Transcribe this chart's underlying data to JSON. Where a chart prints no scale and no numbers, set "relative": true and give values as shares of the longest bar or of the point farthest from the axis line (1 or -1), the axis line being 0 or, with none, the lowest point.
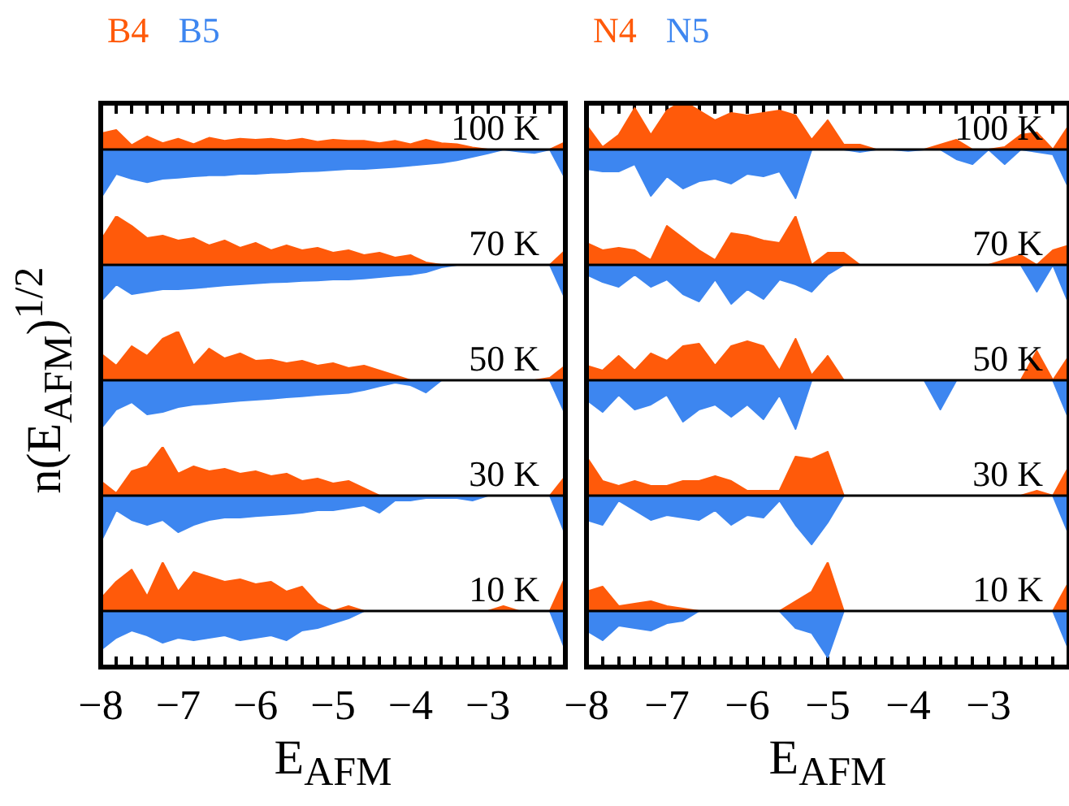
{
  "chart_data": [
    {
      "type": "area",
      "relative": true,
      "annotations": [
        "100 K"
      ],
      "tick_labels": false,
      "xlim": [
        -8,
        -2
      ],
      "xticks": [
        -8,
        {
          "value": -7.8,
          "label": null
        },
        {
          "value": -7.6,
          "label": null
        },
        {
          "value": -7.4,
          "label": null
        },
        {
          "value": -7.2,
          "label": null
        },
        -7,
        {
          "value": -6.8,
          "label": null
        },
        {
          "value": -6.6,
          "label": null
        },
        {
          "value": -6.4,
          "label": null
        },
        {
          "value": -6.2,
          "label": null
        },
        -6,
        {
          "value": -5.8,
          "label": null
        },
        {
          "value": -5.6,
          "label": null
        },
        {
          "value": -5.4,
          "label": null
        },
        {
          "value": -5.2,
          "label": null
        },
        -5,
        {
          "value": -4.8,
          "label": null
        },
        {
          "value": -4.6,
          "label": null
        },
        {
          "value": -4.4,
          "label": null
        },
        {
          "value": -4.2,
          "label": null
        },
        -4,
        {
          "value": -3.8,
          "label": null
        },
        {
          "value": -3.6,
          "label": null
        },
        {
          "value": -3.4,
          "label": null
        },
        {
          "value": -3.2,
          "label": null
        },
        -3,
        {
          "value": -2.8,
          "label": null
        },
        {
          "value": -2.6,
          "label": null
        },
        {
          "value": -2.4,
          "label": null
        },
        {
          "value": -2.2,
          "label": null
        },
        {
          "value": -2,
          "label": null
        }
      ],
      "x": [
        -8,
        -7.8,
        -7.6,
        -7.4,
        -7.2,
        -7,
        -6.8,
        -6.6,
        -6.4,
        -6.2,
        -6,
        -5.8,
        -5.6,
        -5.4,
        -5.2,
        -5,
        -4.8,
        -4.6,
        -4.4,
        -4.2,
        -4,
        -3.8,
        -3.6,
        -3.4,
        -3.2,
        -3,
        -2.8,
        -2.6,
        -2.4,
        -2.2,
        -2
      ],
      "series": [
        {
          "name": "B4",
          "color": "#ff5a0a",
          "values": [
            0.33,
            0.4,
            0.09,
            0.27,
            0.13,
            0.22,
            0.11,
            0.24,
            0.18,
            0.22,
            0.2,
            0.22,
            0.18,
            0.22,
            0.16,
            0.2,
            0.18,
            0.18,
            0.13,
            0.18,
            0.11,
            0.2,
            0.13,
            0.11,
            0.04,
            0,
            0,
            0,
            0,
            0,
            0.15
          ]
        },
        {
          "name": "B5",
          "color": "#3d86f0",
          "values": [
            -1,
            -0.5,
            -0.6,
            -0.67,
            -0.6,
            -0.58,
            -0.55,
            -0.53,
            -0.53,
            -0.5,
            -0.5,
            -0.48,
            -0.47,
            -0.45,
            -0.44,
            -0.42,
            -0.4,
            -0.4,
            -0.38,
            -0.36,
            -0.33,
            -0.3,
            -0.27,
            -0.22,
            -0.15,
            -0.08,
            0,
            -0.04,
            -0.07,
            0,
            -0.6
          ]
        }
      ]
    },
    {
      "type": "area",
      "relative": true,
      "annotations": [
        "70 K"
      ],
      "tick_labels": false,
      "xlim": [
        -8,
        -2
      ],
      "x": [
        -8,
        -7.8,
        -7.6,
        -7.4,
        -7.2,
        -7,
        -6.8,
        -6.6,
        -6.4,
        -6.2,
        -6,
        -5.8,
        -5.6,
        -5.4,
        -5.2,
        -5,
        -4.8,
        -4.6,
        -4.4,
        -4.2,
        -4,
        -3.8,
        -3.6,
        -3.4,
        -3.2,
        -3,
        -2.8,
        -2.6,
        -2.4,
        -2.2,
        -2
      ],
      "series": [
        {
          "color": "#ff5a0a",
          "values": [
            0.5,
            1,
            0.8,
            0.55,
            0.6,
            0.5,
            0.55,
            0.4,
            0.5,
            0.35,
            0.45,
            0.3,
            0.4,
            0.3,
            0.35,
            0.25,
            0.3,
            0.2,
            0.25,
            0.15,
            0.2,
            0.05,
            0,
            0,
            0,
            0,
            0,
            0,
            0,
            0,
            0.3
          ]
        },
        {
          "color": "#3d86f0",
          "values": [
            -0.75,
            -0.4,
            -0.6,
            -0.55,
            -0.5,
            -0.5,
            -0.48,
            -0.45,
            -0.42,
            -0.4,
            -0.38,
            -0.36,
            -0.35,
            -0.33,
            -0.32,
            -0.3,
            -0.3,
            -0.28,
            -0.25,
            -0.22,
            -0.2,
            -0.15,
            -0.05,
            0,
            0,
            0,
            0,
            0,
            0,
            0,
            -0.7
          ]
        }
      ]
    },
    {
      "type": "area",
      "relative": true,
      "annotations": [
        "50 K"
      ],
      "ylabel": "n(E$_{AFM}$)$^{1/2}$",
      "tick_labels": false,
      "xlim": [
        -8,
        -2
      ],
      "x": [
        -8,
        -7.8,
        -7.6,
        -7.4,
        -7.2,
        -7,
        -6.8,
        -6.6,
        -6.4,
        -6.2,
        -6,
        -5.8,
        -5.6,
        -5.4,
        -5.2,
        -5,
        -4.8,
        -4.6,
        -4.4,
        -4.2,
        -4,
        -3.8,
        -3.6,
        -3.4,
        -3.2,
        -3,
        -2.8,
        -2.6,
        -2.4,
        -2.2,
        -2
      ],
      "series": [
        {
          "color": "#ff5a0a",
          "values": [
            0.55,
            0.3,
            0.7,
            0.5,
            0.85,
            1,
            0.3,
            0.65,
            0.45,
            0.55,
            0.4,
            0.42,
            0.35,
            0.4,
            0.3,
            0.35,
            0.25,
            0.3,
            0.2,
            0.1,
            0,
            0,
            0,
            0,
            0,
            0,
            0,
            0,
            0,
            0.05,
            0.3
          ]
        },
        {
          "color": "#3d86f0",
          "values": [
            -1,
            -0.6,
            -0.45,
            -0.7,
            -0.65,
            -0.55,
            -0.5,
            -0.48,
            -0.45,
            -0.42,
            -0.4,
            -0.38,
            -0.35,
            -0.33,
            -0.3,
            -0.28,
            -0.26,
            -0.2,
            -0.12,
            -0.05,
            -0.1,
            -0.25,
            0,
            0,
            0,
            0,
            0,
            0,
            0,
            0,
            -0.7
          ]
        }
      ]
    },
    {
      "type": "area",
      "relative": true,
      "annotations": [
        "30 K"
      ],
      "tick_labels": false,
      "xlim": [
        -8,
        -2
      ],
      "x": [
        -8,
        -7.8,
        -7.6,
        -7.4,
        -7.2,
        -7,
        -6.8,
        -6.6,
        -6.4,
        -6.2,
        -6,
        -5.8,
        -5.6,
        -5.4,
        -5.2,
        -5,
        -4.8,
        -4.6,
        -4.4,
        -4.2,
        -4,
        -3.8,
        -3.6,
        -3.4,
        -3.2,
        -3,
        -2.8,
        -2.6,
        -2.4,
        -2.2,
        -2
      ],
      "series": [
        {
          "color": "#ff5a0a",
          "values": [
            0.3,
            0.05,
            0.5,
            0.6,
            1,
            0.45,
            0.6,
            0.5,
            0.55,
            0.45,
            0.5,
            0.4,
            0.45,
            0.3,
            0.35,
            0.25,
            0.3,
            0.15,
            0,
            0,
            0,
            0,
            0,
            0,
            0,
            0,
            0,
            0,
            0,
            0,
            0.4
          ]
        },
        {
          "color": "#3d86f0",
          "values": [
            -0.95,
            -0.3,
            -0.5,
            -0.6,
            -0.5,
            -0.75,
            -0.6,
            -0.5,
            -0.45,
            -0.45,
            -0.42,
            -0.4,
            -0.38,
            -0.35,
            -0.3,
            -0.3,
            -0.25,
            -0.2,
            -0.35,
            -0.1,
            -0.1,
            -0.05,
            -0.05,
            -0.05,
            -0.1,
            0,
            0,
            0,
            0,
            0,
            -0.8
          ]
        }
      ]
    },
    {
      "type": "area",
      "relative": true,
      "annotations": [
        "10 K"
      ],
      "xlabel": "E$_{AFM}$",
      "tick_labels": "x",
      "xlim": [
        -8,
        -2
      ],
      "xticks": [
        -8,
        {
          "value": -7.8,
          "label": null
        },
        {
          "value": -7.6,
          "label": null
        },
        {
          "value": -7.4,
          "label": null
        },
        {
          "value": -7.2,
          "label": null
        },
        -7,
        {
          "value": -6.8,
          "label": null
        },
        {
          "value": -6.6,
          "label": null
        },
        {
          "value": -6.4,
          "label": null
        },
        {
          "value": -6.2,
          "label": null
        },
        -6,
        {
          "value": -5.8,
          "label": null
        },
        {
          "value": -5.6,
          "label": null
        },
        {
          "value": -5.4,
          "label": null
        },
        {
          "value": -5.2,
          "label": null
        },
        -5,
        {
          "value": -4.8,
          "label": null
        },
        {
          "value": -4.6,
          "label": null
        },
        {
          "value": -4.4,
          "label": null
        },
        {
          "value": -4.2,
          "label": null
        },
        -4,
        {
          "value": -3.8,
          "label": null
        },
        {
          "value": -3.6,
          "label": null
        },
        {
          "value": -3.4,
          "label": null
        },
        {
          "value": -3.2,
          "label": null
        },
        -3,
        {
          "value": -2.8,
          "label": null
        },
        {
          "value": -2.6,
          "label": null
        },
        {
          "value": -2.4,
          "label": null
        },
        {
          "value": -2.2,
          "label": null
        },
        {
          "value": -2,
          "label": null
        }
      ],
      "x": [
        -8,
        -7.8,
        -7.6,
        -7.4,
        -7.2,
        -7,
        -6.8,
        -6.6,
        -6.4,
        -6.2,
        -6,
        -5.8,
        -5.6,
        -5.4,
        -5.2,
        -5,
        -4.8,
        -4.6,
        -4.4,
        -4.2,
        -4,
        -3.8,
        -3.6,
        -3.4,
        -3.2,
        -3,
        -2.8,
        -2.6,
        -2.4,
        -2.2,
        -2
      ],
      "series": [
        {
          "color": "#ff5a0a",
          "values": [
            0.25,
            0.6,
            0.85,
            0.3,
            1,
            0.4,
            0.8,
            0.7,
            0.6,
            0.65,
            0.55,
            0.6,
            0.4,
            0.5,
            0.15,
            0,
            0.1,
            0,
            0,
            0,
            0,
            0,
            0,
            0,
            0,
            0,
            0.1,
            0,
            0,
            0,
            0.7
          ]
        },
        {
          "color": "#3d86f0",
          "values": [
            -0.8,
            -0.55,
            -0.4,
            -0.5,
            -0.65,
            -0.55,
            -0.6,
            -0.55,
            -0.5,
            -0.6,
            -0.55,
            -0.5,
            -0.6,
            -0.4,
            -0.35,
            -0.25,
            -0.15,
            0,
            0,
            0,
            0,
            0,
            0,
            0,
            0,
            0,
            0,
            0,
            0,
            0,
            -0.8
          ]
        }
      ]
    },
    {
      "type": "area",
      "relative": true,
      "annotations": [
        "100 K"
      ],
      "tick_labels": false,
      "xlim": [
        -8,
        -2
      ],
      "xticks": [
        -8,
        {
          "value": -7.8,
          "label": null
        },
        {
          "value": -7.6,
          "label": null
        },
        {
          "value": -7.4,
          "label": null
        },
        {
          "value": -7.2,
          "label": null
        },
        -7,
        {
          "value": -6.8,
          "label": null
        },
        {
          "value": -6.6,
          "label": null
        },
        {
          "value": -6.4,
          "label": null
        },
        {
          "value": -6.2,
          "label": null
        },
        -6,
        {
          "value": -5.8,
          "label": null
        },
        {
          "value": -5.6,
          "label": null
        },
        {
          "value": -5.4,
          "label": null
        },
        {
          "value": -5.2,
          "label": null
        },
        -5,
        {
          "value": -4.8,
          "label": null
        },
        {
          "value": -4.6,
          "label": null
        },
        {
          "value": -4.4,
          "label": null
        },
        {
          "value": -4.2,
          "label": null
        },
        -4,
        {
          "value": -3.8,
          "label": null
        },
        {
          "value": -3.6,
          "label": null
        },
        {
          "value": -3.4,
          "label": null
        },
        {
          "value": -3.2,
          "label": null
        },
        -3,
        {
          "value": -2.8,
          "label": null
        },
        {
          "value": -2.6,
          "label": null
        },
        {
          "value": -2.4,
          "label": null
        },
        {
          "value": -2.2,
          "label": null
        },
        {
          "value": -2,
          "label": null
        }
      ],
      "x": [
        -8,
        -7.8,
        -7.6,
        -7.4,
        -7.2,
        -7,
        -6.8,
        -6.6,
        -6.4,
        -6.2,
        -6,
        -5.8,
        -5.6,
        -5.4,
        -5.2,
        -5,
        -4.8,
        -4.6,
        -4.4,
        -4.2,
        -4,
        -3.8,
        -3.6,
        -3.4,
        -3.2,
        -3,
        -2.8,
        -2.6,
        -2.4,
        -2.2,
        -2
      ],
      "series": [
        {
          "name": "N4",
          "color": "#ff5a0a",
          "values": [
            0.5,
            0.05,
            0.3,
            0.85,
            0.3,
            0.8,
            1,
            0.8,
            0.6,
            0.75,
            0.7,
            0.75,
            0.8,
            0.7,
            0.2,
            0.6,
            0.1,
            0.1,
            0,
            0,
            0,
            0,
            0.1,
            0.2,
            0,
            0,
            0.05,
            0.3,
            0.35,
            0,
            0.5
          ]
        },
        {
          "name": "N5",
          "color": "#3d86f0",
          "values": [
            -0.4,
            -0.45,
            -0.45,
            -0.3,
            -0.95,
            -0.55,
            -0.8,
            -0.65,
            -0.6,
            -0.7,
            -0.5,
            -0.55,
            -0.45,
            -1,
            0,
            0,
            0,
            -0.05,
            0,
            0,
            -0.03,
            0,
            0,
            -0.2,
            -0.3,
            0,
            -0.3,
            0,
            -0.05,
            -0.1,
            -0.8
          ]
        }
      ]
    },
    {
      "type": "area",
      "relative": true,
      "annotations": [
        "70 K"
      ],
      "tick_labels": false,
      "xlim": [
        -8,
        -2
      ],
      "x": [
        -8,
        -7.8,
        -7.6,
        -7.4,
        -7.2,
        -7,
        -6.8,
        -6.6,
        -6.4,
        -6.2,
        -6,
        -5.8,
        -5.6,
        -5.4,
        -5.2,
        -5,
        -4.8,
        -4.6,
        -4.4,
        -4.2,
        -4,
        -3.8,
        -3.6,
        -3.4,
        -3.2,
        -3,
        -2.8,
        -2.6,
        -2.4,
        -2.2,
        -2
      ],
      "series": [
        {
          "color": "#ff5a0a",
          "values": [
            0.45,
            0.3,
            0.35,
            0.3,
            0.1,
            0.8,
            0.55,
            0.3,
            0.1,
            0.65,
            0.6,
            0.5,
            0.45,
            1,
            0,
            0.25,
            0.25,
            0,
            0,
            0,
            0,
            0,
            0,
            0,
            0,
            0,
            0.1,
            0.2,
            0,
            0.3,
            0.4
          ]
        },
        {
          "color": "#3d86f0",
          "values": [
            -0.2,
            -0.35,
            -0.45,
            -0.2,
            -0.45,
            -0.3,
            -0.6,
            -0.75,
            -0.3,
            -0.8,
            -0.5,
            -0.7,
            -0.3,
            -0.4,
            -0.55,
            -0.2,
            0,
            0,
            0,
            0,
            0,
            0,
            0,
            0,
            0,
            0,
            0,
            0,
            -0.55,
            0,
            -0.8
          ]
        }
      ]
    },
    {
      "type": "area",
      "relative": true,
      "annotations": [
        "50 K"
      ],
      "tick_labels": false,
      "xlim": [
        -8,
        -2
      ],
      "x": [
        -8,
        -7.8,
        -7.6,
        -7.4,
        -7.2,
        -7,
        -6.8,
        -6.6,
        -6.4,
        -6.2,
        -6,
        -5.8,
        -5.6,
        -5.4,
        -5.2,
        -5,
        -4.8,
        -4.6,
        -4.4,
        -4.2,
        -4,
        -3.8,
        -3.6,
        -3.4,
        -3.2,
        -3,
        -2.8,
        -2.6,
        -2.4,
        -2.2,
        -2
      ],
      "series": [
        {
          "color": "#ff5a0a",
          "values": [
            0.3,
            0.2,
            0.5,
            0.2,
            0.55,
            0.4,
            0.7,
            0.75,
            0.3,
            0.7,
            0.8,
            0.7,
            0.2,
            0.85,
            0.1,
            0.5,
            0,
            0,
            0,
            0,
            0,
            0,
            0,
            0,
            0,
            0,
            0,
            0,
            0.6,
            0,
            0.5
          ]
        },
        {
          "color": "#3d86f0",
          "values": [
            -0.4,
            -0.65,
            -0.3,
            -0.6,
            -0.5,
            -0.3,
            -0.85,
            -0.6,
            -0.5,
            -0.75,
            -0.5,
            -0.8,
            -0.3,
            -1,
            0,
            0,
            0,
            0,
            0,
            0,
            0,
            0,
            -0.6,
            0,
            0,
            0,
            0,
            0,
            0,
            0,
            -0.8
          ]
        }
      ]
    },
    {
      "type": "area",
      "relative": true,
      "annotations": [
        "30 K"
      ],
      "tick_labels": false,
      "xlim": [
        -8,
        -2
      ],
      "x": [
        -8,
        -7.8,
        -7.6,
        -7.4,
        -7.2,
        -7,
        -6.8,
        -6.6,
        -6.4,
        -6.2,
        -6,
        -5.8,
        -5.6,
        -5.4,
        -5.2,
        -5,
        -4.8,
        -4.6,
        -4.4,
        -4.2,
        -4,
        -3.8,
        -3.6,
        -3.4,
        -3.2,
        -3,
        -2.8,
        -2.6,
        -2.4,
        -2.2,
        -2
      ],
      "series": [
        {
          "color": "#ff5a0a",
          "values": [
            0.8,
            0.3,
            0.2,
            0.3,
            0.2,
            0.2,
            0.3,
            0.3,
            0.4,
            0.3,
            0.1,
            0.1,
            0.1,
            0.8,
            0.75,
            0.9,
            0,
            0,
            0,
            0,
            0,
            0,
            0,
            0,
            0,
            0,
            0,
            0,
            0.1,
            0,
            0.6
          ]
        },
        {
          "color": "#3d86f0",
          "values": [
            -0.5,
            -0.6,
            -0.1,
            -0.3,
            -0.5,
            -0.4,
            -0.45,
            -0.5,
            -0.3,
            -0.6,
            -0.4,
            -0.45,
            -0.1,
            -0.6,
            -1,
            -0.55,
            0,
            0,
            0,
            0,
            0,
            0,
            0,
            0,
            0,
            0,
            0,
            0,
            0,
            0,
            -0.8
          ]
        }
      ]
    },
    {
      "type": "area",
      "relative": true,
      "annotations": [
        "10 K"
      ],
      "xlabel": "E$_{AFM}$",
      "tick_labels": "x",
      "xlim": [
        -8,
        -2
      ],
      "xticks": [
        -8,
        {
          "value": -7.8,
          "label": null
        },
        {
          "value": -7.6,
          "label": null
        },
        {
          "value": -7.4,
          "label": null
        },
        {
          "value": -7.2,
          "label": null
        },
        -7,
        {
          "value": -6.8,
          "label": null
        },
        {
          "value": -6.6,
          "label": null
        },
        {
          "value": -6.4,
          "label": null
        },
        {
          "value": -6.2,
          "label": null
        },
        -6,
        {
          "value": -5.8,
          "label": null
        },
        {
          "value": -5.6,
          "label": null
        },
        {
          "value": -5.4,
          "label": null
        },
        {
          "value": -5.2,
          "label": null
        },
        -5,
        {
          "value": -4.8,
          "label": null
        },
        {
          "value": -4.6,
          "label": null
        },
        {
          "value": -4.4,
          "label": null
        },
        {
          "value": -4.2,
          "label": null
        },
        -4,
        {
          "value": -3.8,
          "label": null
        },
        {
          "value": -3.6,
          "label": null
        },
        {
          "value": -3.4,
          "label": null
        },
        {
          "value": -3.2,
          "label": null
        },
        -3,
        {
          "value": -2.8,
          "label": null
        },
        {
          "value": -2.6,
          "label": null
        },
        {
          "value": -2.4,
          "label": null
        },
        {
          "value": -2.2,
          "label": null
        },
        {
          "value": -2,
          "label": null
        }
      ],
      "x": [
        -8,
        -7.8,
        -7.6,
        -7.4,
        -7.2,
        -7,
        -6.8,
        -6.6,
        -6.4,
        -6.2,
        -6,
        -5.8,
        -5.6,
        -5.4,
        -5.2,
        -5,
        -4.8,
        -4.6,
        -4.4,
        -4.2,
        -4,
        -3.8,
        -3.6,
        -3.4,
        -3.2,
        -3,
        -2.8,
        -2.6,
        -2.4,
        -2.2,
        -2
      ],
      "series": [
        {
          "color": "#ff5a0a",
          "values": [
            0.4,
            0.5,
            0.1,
            0.15,
            0.2,
            0.1,
            0.05,
            0,
            0,
            0,
            0,
            0,
            0,
            0.2,
            0.4,
            1,
            0,
            0,
            0,
            0,
            0,
            0,
            0,
            0,
            0,
            0,
            0,
            0,
            0,
            0,
            0.6
          ]
        },
        {
          "color": "#3d86f0",
          "values": [
            -0.4,
            -0.6,
            -0.3,
            -0.35,
            -0.4,
            -0.25,
            -0.2,
            0,
            0,
            0,
            0,
            0,
            0,
            -0.35,
            -0.45,
            -0.95,
            0,
            0,
            0,
            0,
            0,
            0,
            0,
            0,
            0,
            0,
            0,
            0,
            0,
            0,
            -0.8
          ]
        }
      ]
    }
  ]
}
